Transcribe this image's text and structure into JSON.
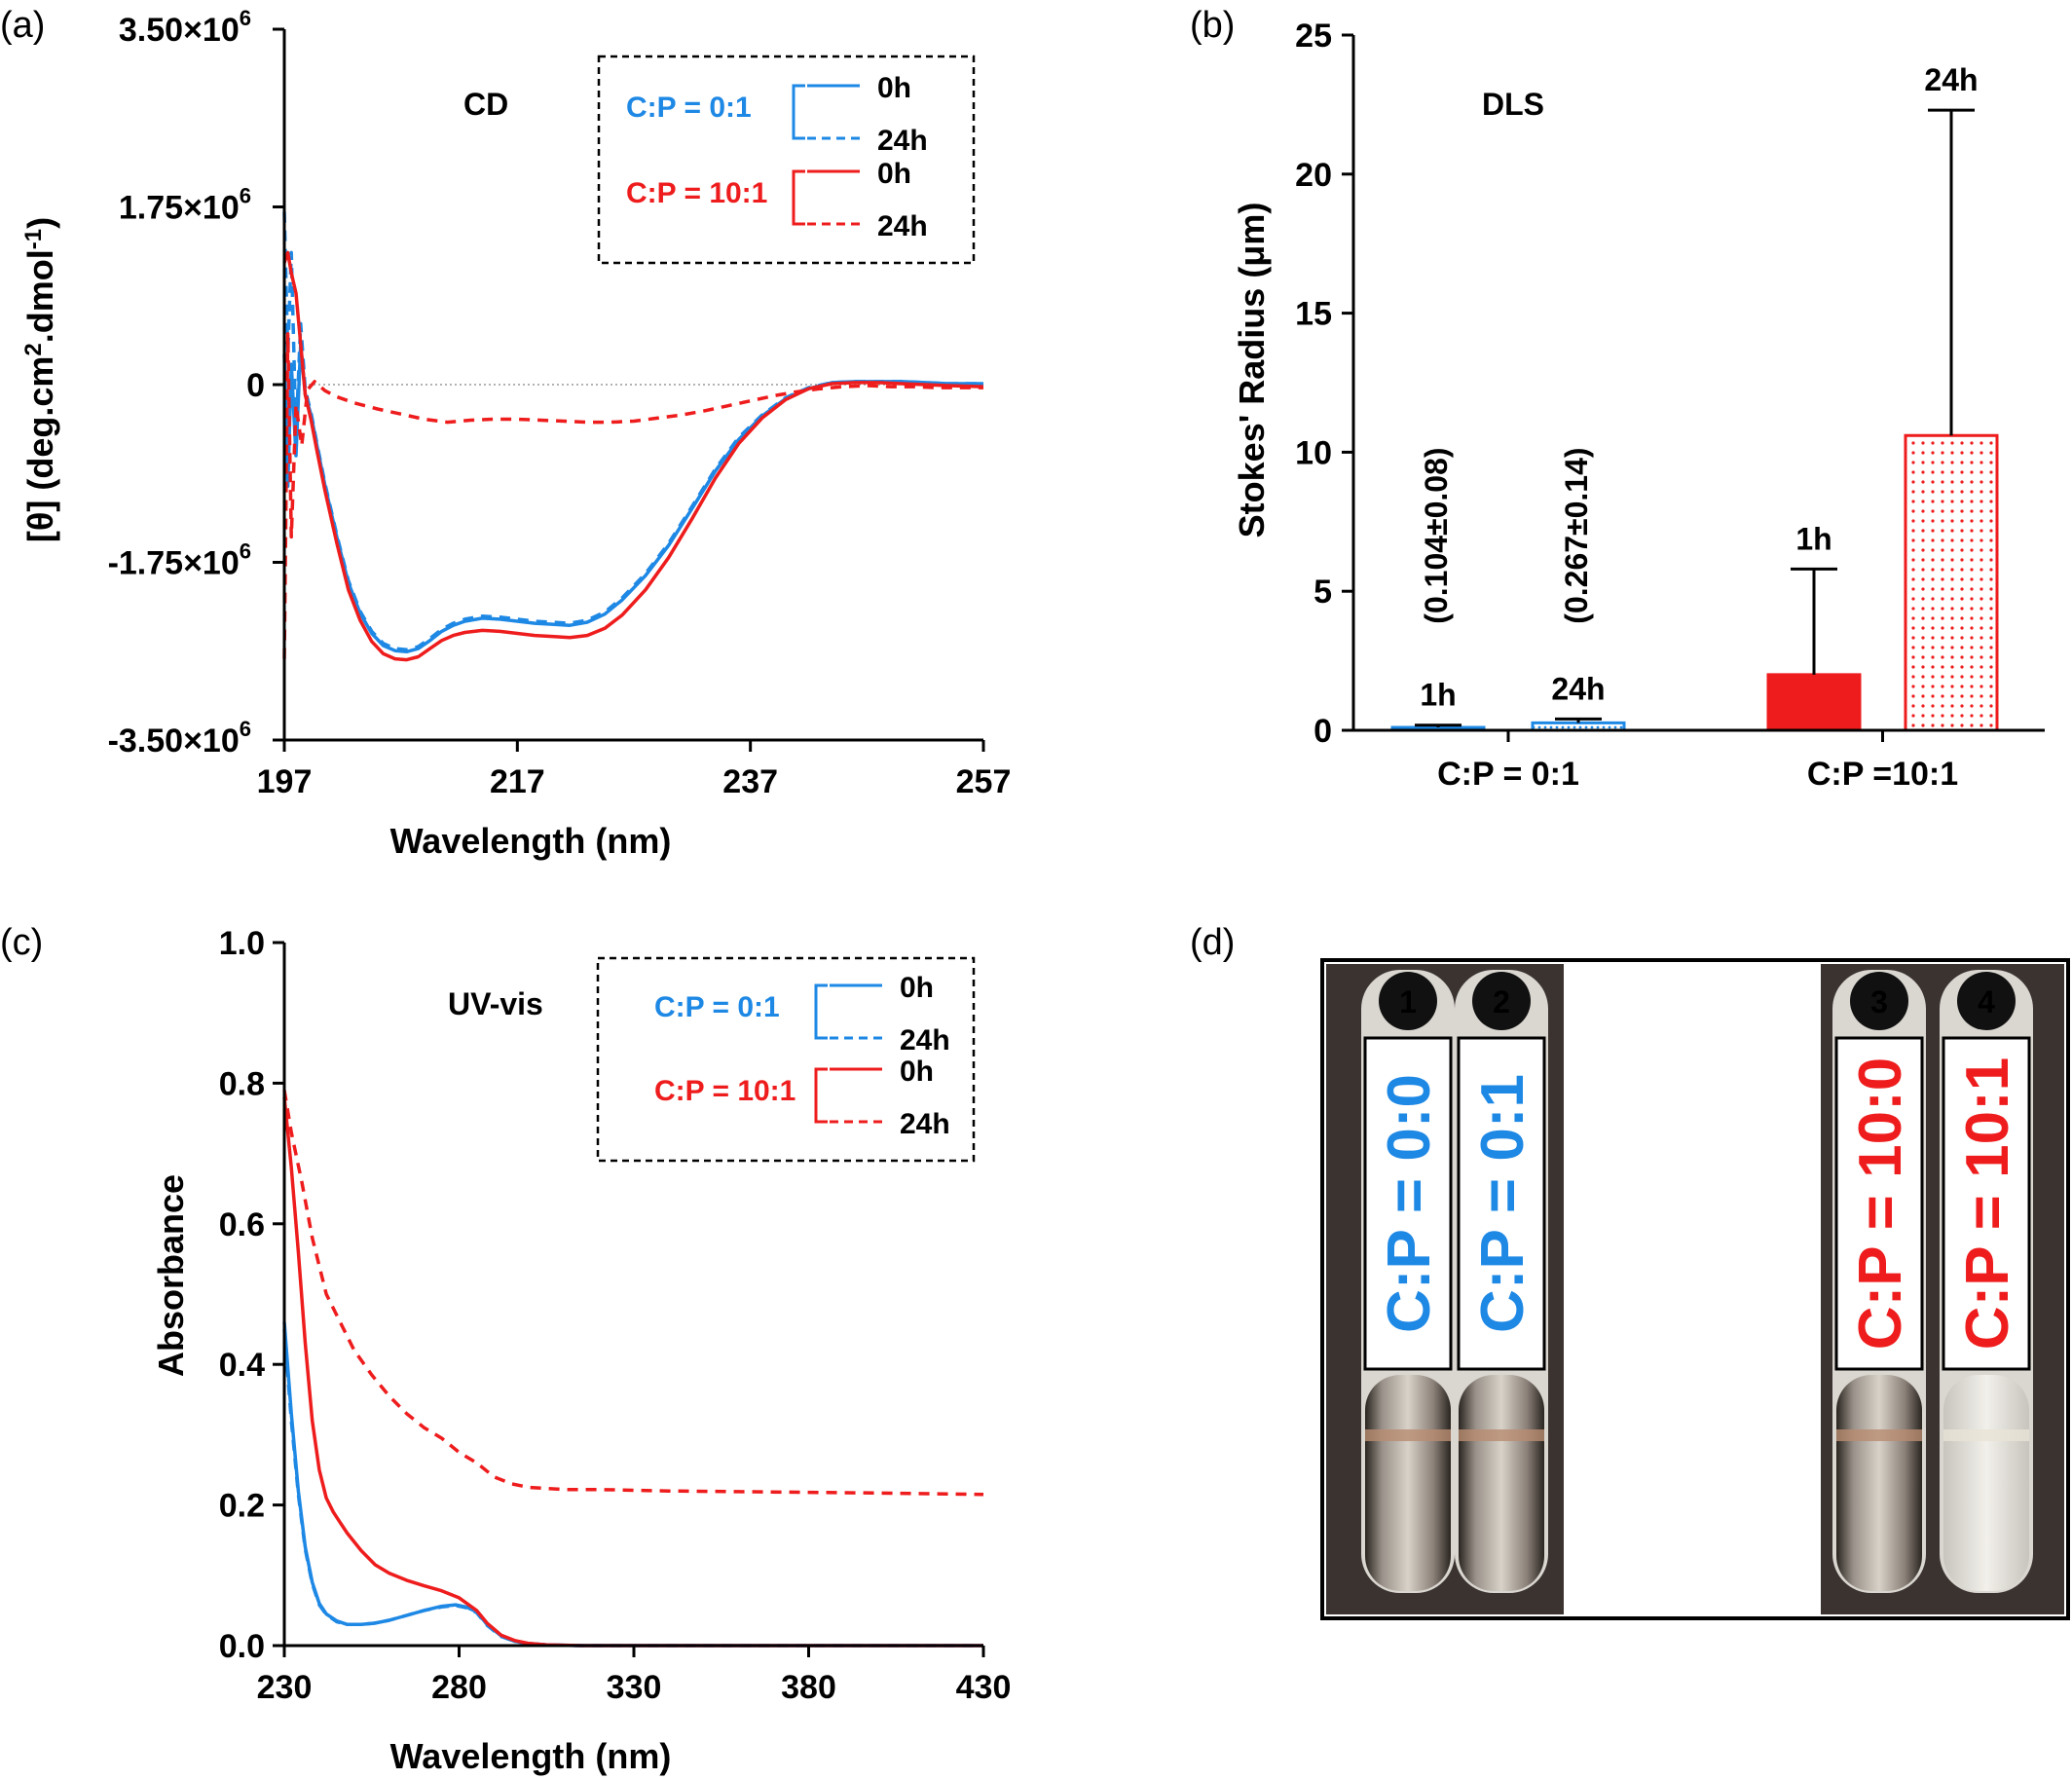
{
  "colors": {
    "blue": "#1e88e5",
    "red": "#ee1c1c",
    "black": "#000000"
  },
  "chart_data": [
    {
      "id": "a",
      "panel_label": "(a)",
      "type": "line",
      "inset_label": "CD",
      "xlabel": "Wavelength (nm)",
      "ylabel": "[θ] (deg.cm².dmol⁻¹)",
      "xlim": [
        197,
        257
      ],
      "ylim": [
        -3500000,
        3500000
      ],
      "x_ticks": [
        "197",
        "217",
        "237",
        "257"
      ],
      "y_ticks": [
        "3.50×10⁶",
        "1.75×10⁶",
        "0",
        "-1.75×10⁶",
        "-3.50×10⁶"
      ],
      "y_tick_values": [
        3500000,
        1750000,
        0,
        -1750000,
        -3500000
      ],
      "legend": {
        "groups": [
          {
            "label": "C:P = 0:1",
            "color": "blue",
            "entries": [
              "0h",
              "24h"
            ]
          },
          {
            "label": "C:P = 10:1",
            "color": "red",
            "entries": [
              "0h",
              "24h"
            ]
          }
        ]
      },
      "series": [
        {
          "name": "C:P = 0:1 0h",
          "color": "blue",
          "dash": false,
          "x": [
            197,
            197.3,
            197.6,
            198,
            198.4,
            198.8,
            199.3,
            199.8,
            200.5,
            201.5,
            202.5,
            203.5,
            204.5,
            205.5,
            206.5,
            207.5,
            208.5,
            209.5,
            210.5,
            211.5,
            212.5,
            214,
            215.5,
            217,
            218.5,
            220,
            221.5,
            223,
            224.5,
            226,
            228,
            230,
            232,
            234,
            236,
            238,
            240,
            242,
            244,
            246,
            248,
            250,
            252,
            254,
            257
          ],
          "y": [
            300000,
            -1000000,
            200000,
            -700000,
            400000,
            -100000,
            -300000,
            -600000,
            -1000000,
            -1500000,
            -1950000,
            -2250000,
            -2450000,
            -2570000,
            -2620000,
            -2630000,
            -2600000,
            -2520000,
            -2430000,
            -2370000,
            -2330000,
            -2300000,
            -2310000,
            -2330000,
            -2350000,
            -2360000,
            -2370000,
            -2340000,
            -2260000,
            -2120000,
            -1880000,
            -1580000,
            -1220000,
            -850000,
            -540000,
            -310000,
            -140000,
            -40000,
            20000,
            30000,
            30000,
            30000,
            20000,
            10000,
            10000
          ]
        },
        {
          "name": "C:P = 0:1 24h",
          "color": "blue",
          "dash": true,
          "x": [
            197,
            197.3,
            197.6,
            198,
            198.4,
            198.8,
            199.3,
            199.8,
            200.5,
            201.5,
            202.5,
            203.5,
            204.5,
            205.5,
            206.5,
            207.5,
            208.5,
            209.5,
            210.5,
            211.5,
            212.5,
            214,
            215.5,
            217,
            218.5,
            220,
            221.5,
            223,
            224.5,
            226,
            228,
            230,
            232,
            234,
            236,
            238,
            240,
            242,
            244,
            246,
            248,
            250,
            252,
            254,
            257
          ],
          "y": [
            1700000,
            300000,
            1300000,
            -500000,
            600000,
            -50000,
            -280000,
            -580000,
            -980000,
            -1480000,
            -1930000,
            -2230000,
            -2430000,
            -2550000,
            -2600000,
            -2610000,
            -2580000,
            -2500000,
            -2410000,
            -2350000,
            -2310000,
            -2280000,
            -2290000,
            -2310000,
            -2330000,
            -2340000,
            -2350000,
            -2320000,
            -2240000,
            -2100000,
            -1860000,
            -1560000,
            -1200000,
            -830000,
            -520000,
            -300000,
            -130000,
            -30000,
            20000,
            30000,
            30000,
            30000,
            20000,
            10000,
            10000
          ]
        },
        {
          "name": "C:P = 10:1 0h",
          "color": "red",
          "dash": false,
          "x": [
            197,
            197.3,
            197.6,
            198,
            198.4,
            198.8,
            199.3,
            199.8,
            200.5,
            201.5,
            202.5,
            203.5,
            204.5,
            205.5,
            206.5,
            207.5,
            208.5,
            209.5,
            210.5,
            211.5,
            212.5,
            214,
            215.5,
            217,
            218.5,
            220,
            221.5,
            223,
            224.5,
            226,
            228,
            230,
            232,
            234,
            236,
            238,
            240,
            242,
            244,
            246,
            248,
            250,
            252,
            254,
            257
          ],
          "y": [
            1200000,
            1300000,
            1100000,
            900000,
            400000,
            -100000,
            -350000,
            -650000,
            -1050000,
            -1560000,
            -2020000,
            -2320000,
            -2530000,
            -2650000,
            -2700000,
            -2710000,
            -2680000,
            -2600000,
            -2520000,
            -2470000,
            -2440000,
            -2420000,
            -2430000,
            -2450000,
            -2470000,
            -2480000,
            -2490000,
            -2470000,
            -2400000,
            -2270000,
            -2020000,
            -1700000,
            -1320000,
            -920000,
            -580000,
            -330000,
            -150000,
            -40000,
            10000,
            20000,
            20000,
            10000,
            0,
            -10000,
            -20000
          ]
        },
        {
          "name": "C:P = 10:1 24h",
          "color": "red",
          "dash": true,
          "x": [
            197,
            197.3,
            197.6,
            198,
            198.5,
            199,
            199.6,
            200.5,
            201.5,
            203,
            205,
            207,
            209,
            211,
            213,
            215,
            217,
            219,
            221,
            223,
            225,
            227,
            229,
            231,
            233,
            235,
            237,
            239,
            241,
            243,
            245,
            247,
            249,
            251,
            253,
            255,
            257
          ],
          "y": [
            -2700000,
            500000,
            -1500000,
            -200000,
            -600000,
            -50000,
            30000,
            -60000,
            -120000,
            -180000,
            -240000,
            -290000,
            -340000,
            -370000,
            -350000,
            -340000,
            -340000,
            -350000,
            -360000,
            -370000,
            -370000,
            -360000,
            -330000,
            -300000,
            -260000,
            -210000,
            -160000,
            -110000,
            -70000,
            -40000,
            -20000,
            -10000,
            -20000,
            -20000,
            -30000,
            -30000,
            -30000
          ]
        }
      ]
    },
    {
      "id": "b",
      "panel_label": "(b)",
      "type": "bar",
      "inset_label": "DLS",
      "ylabel": "Stokes' Radius (μm)",
      "ylim": [
        0,
        25
      ],
      "y_ticks": [
        "0",
        "5",
        "10",
        "15",
        "20",
        "25"
      ],
      "y_tick_values": [
        0,
        5,
        10,
        15,
        20,
        25
      ],
      "groups": [
        "C:P = 0:1",
        "C:P =10:1"
      ],
      "bars": [
        {
          "group": 0,
          "label": "1h",
          "value": 0.104,
          "error": 0.08,
          "annotation": "(0.104±0.08)",
          "color": "blue",
          "fill": "solid"
        },
        {
          "group": 0,
          "label": "24h",
          "value": 0.267,
          "error": 0.14,
          "annotation": "(0.267±0.14)",
          "color": "blue",
          "fill": "dotted"
        },
        {
          "group": 1,
          "label": "1h",
          "value": 2.0,
          "error": 3.8,
          "color": "red",
          "fill": "solid"
        },
        {
          "group": 1,
          "label": "24h",
          "value": 10.6,
          "error": 11.7,
          "color": "red",
          "fill": "dotted"
        }
      ]
    },
    {
      "id": "c",
      "panel_label": "(c)",
      "type": "line",
      "inset_label": "UV-vis",
      "xlabel": "Wavelength (nm)",
      "ylabel": "Absorbance",
      "xlim": [
        230,
        430
      ],
      "ylim": [
        0,
        1
      ],
      "x_ticks": [
        "230",
        "280",
        "330",
        "380",
        "430"
      ],
      "y_ticks": [
        "1.0",
        "0.8",
        "0.6",
        "0.4",
        "0.2",
        "0.0"
      ],
      "y_tick_values": [
        1,
        0.8,
        0.6,
        0.4,
        0.2,
        0
      ],
      "legend": {
        "groups": [
          {
            "label": "C:P = 0:1",
            "color": "blue",
            "entries": [
              "0h",
              "24h"
            ]
          },
          {
            "label": "C:P = 10:1",
            "color": "red",
            "entries": [
              "0h",
              "24h"
            ]
          }
        ]
      },
      "series": [
        {
          "name": "C:P = 0:1 0h",
          "color": "blue",
          "dash": false,
          "x": [
            230,
            232,
            234,
            236,
            238,
            240,
            242,
            245,
            248,
            252,
            256,
            260,
            265,
            270,
            275,
            279,
            282,
            285,
            288,
            292,
            296,
            300,
            305,
            315,
            330,
            360,
            400,
            430
          ],
          "y": [
            0.46,
            0.33,
            0.22,
            0.14,
            0.09,
            0.06,
            0.045,
            0.035,
            0.03,
            0.03,
            0.032,
            0.036,
            0.043,
            0.05,
            0.056,
            0.058,
            0.055,
            0.048,
            0.03,
            0.014,
            0.006,
            0.003,
            0.001,
            0,
            0,
            0,
            0,
            0
          ]
        },
        {
          "name": "C:P = 0:1 24h",
          "color": "blue",
          "dash": true,
          "x": [
            230,
            232,
            234,
            236,
            238,
            240,
            242,
            245,
            248,
            252,
            256,
            260,
            265,
            270,
            275,
            279,
            282,
            285,
            288,
            292,
            296,
            300,
            305,
            315,
            330,
            360,
            400,
            430
          ],
          "y": [
            0.45,
            0.32,
            0.215,
            0.137,
            0.088,
            0.058,
            0.044,
            0.034,
            0.03,
            0.03,
            0.032,
            0.036,
            0.043,
            0.05,
            0.055,
            0.057,
            0.054,
            0.047,
            0.029,
            0.013,
            0.006,
            0.003,
            0.001,
            0,
            0,
            0,
            0,
            0
          ]
        },
        {
          "name": "C:P = 10:1 0h",
          "color": "red",
          "dash": false,
          "x": [
            230,
            232,
            234,
            236,
            238,
            240,
            242,
            244,
            246,
            248,
            252,
            256,
            260,
            265,
            270,
            275,
            280,
            285,
            288,
            292,
            296,
            300,
            305,
            315,
            330,
            360,
            400,
            430
          ],
          "y": [
            0.78,
            0.68,
            0.56,
            0.43,
            0.32,
            0.25,
            0.21,
            0.19,
            0.175,
            0.16,
            0.135,
            0.115,
            0.103,
            0.093,
            0.085,
            0.078,
            0.068,
            0.05,
            0.032,
            0.015,
            0.007,
            0.003,
            0.001,
            0,
            0,
            0,
            0,
            0
          ]
        },
        {
          "name": "C:P = 10:1 24h",
          "color": "red",
          "dash": true,
          "x": [
            230,
            232,
            235,
            238,
            242,
            246,
            250,
            255,
            260,
            265,
            270,
            275,
            280,
            285,
            290,
            295,
            300,
            310,
            320,
            340,
            360,
            380,
            400,
            430
          ],
          "y": [
            0.79,
            0.73,
            0.66,
            0.58,
            0.5,
            0.46,
            0.42,
            0.385,
            0.355,
            0.33,
            0.31,
            0.295,
            0.275,
            0.26,
            0.24,
            0.23,
            0.225,
            0.222,
            0.222,
            0.22,
            0.219,
            0.218,
            0.217,
            0.215
          ]
        }
      ]
    }
  ],
  "photo": {
    "panel_label": "(d)",
    "tubes": [
      {
        "number": "1",
        "label": "C:P = 0:0",
        "color": "blue"
      },
      {
        "number": "2",
        "label": "C:P = 0:1",
        "color": "blue"
      },
      {
        "number": "3",
        "label": "C:P = 10:0",
        "color": "red"
      },
      {
        "number": "4",
        "label": "C:P = 10:1",
        "color": "red"
      }
    ]
  }
}
